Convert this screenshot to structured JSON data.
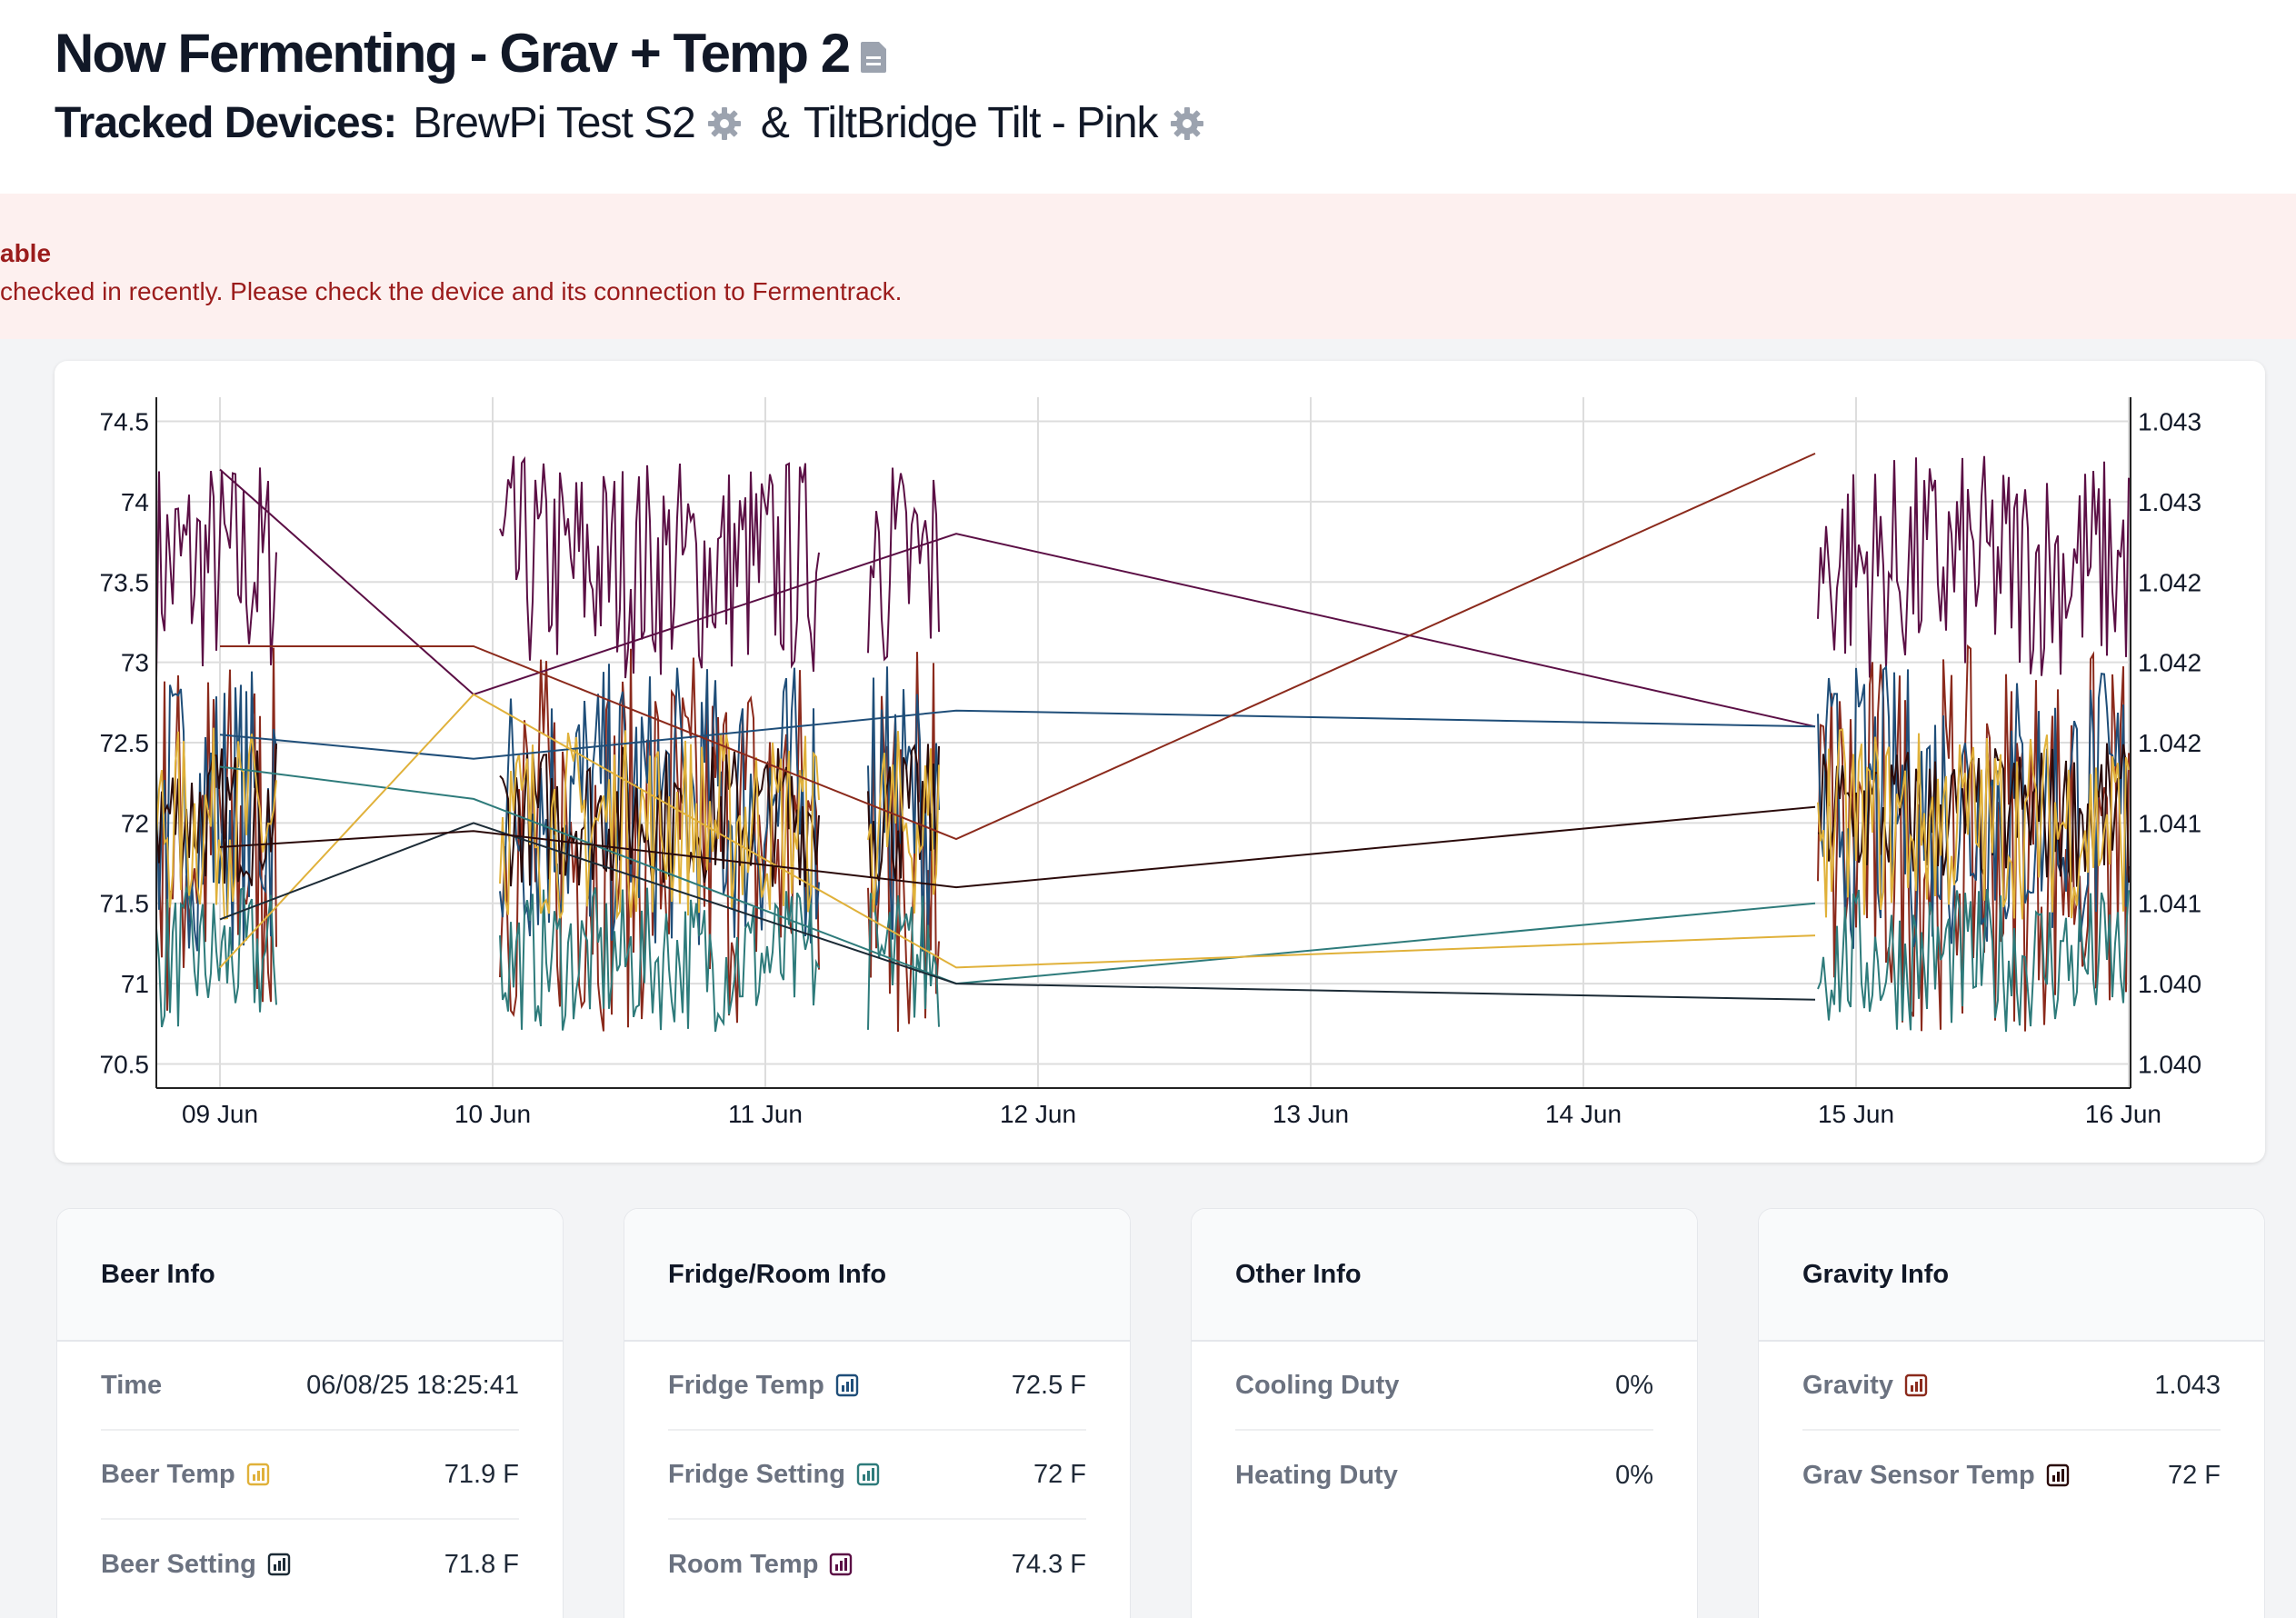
{
  "header": {
    "title": "Now Fermenting - Grav + Temp 2",
    "tracked_label": "Tracked Devices:",
    "device1": "BrewPi Test S2",
    "amp": "&",
    "device2": "TiltBridge Tilt - Pink"
  },
  "alert": {
    "title": "able",
    "message": "checked in recently. Please check the device and its connection to Fermentrack."
  },
  "chart_data": {
    "type": "line",
    "x_ticks": [
      "09 Jun",
      "10 Jun",
      "11 Jun",
      "12 Jun",
      "13 Jun",
      "14 Jun",
      "15 Jun",
      "16 Jun"
    ],
    "y_left_ticks": [
      "74.5",
      "74",
      "73.5",
      "73",
      "72.5",
      "72",
      "71.5",
      "71",
      "70.5"
    ],
    "y_right_ticks": [
      "1.043",
      "1.043",
      "1.042",
      "1.042",
      "1.042",
      "1.041",
      "1.041",
      "1.040",
      "1.040"
    ],
    "ylim_left": [
      70.35,
      74.65
    ],
    "grid": true,
    "series": [
      {
        "color": "#5b0f45",
        "points": [
          [
            9.0,
            74.2
          ],
          [
            9.93,
            72.8
          ],
          [
            11.7,
            73.8
          ],
          [
            14.85,
            72.6
          ]
        ]
      },
      {
        "color": "#1f4e79",
        "points": [
          [
            9.0,
            72.55
          ],
          [
            9.93,
            72.4
          ],
          [
            11.7,
            72.7
          ],
          [
            14.85,
            72.6
          ]
        ]
      },
      {
        "color": "#2e7b7b",
        "points": [
          [
            9.0,
            72.35
          ],
          [
            9.93,
            72.15
          ],
          [
            11.7,
            71.0
          ],
          [
            14.85,
            71.5
          ]
        ]
      },
      {
        "color": "#e0b13a",
        "points": [
          [
            9.0,
            71.1
          ],
          [
            9.93,
            72.8
          ],
          [
            11.7,
            71.1
          ],
          [
            14.85,
            71.3
          ]
        ]
      },
      {
        "color": "#8b2a1c",
        "points": [
          [
            9.0,
            73.1
          ],
          [
            9.93,
            73.1
          ],
          [
            11.7,
            71.9
          ],
          [
            14.85,
            74.3
          ]
        ]
      },
      {
        "color": "#1c2b36",
        "points": [
          [
            9.0,
            71.4
          ],
          [
            9.93,
            72.0
          ],
          [
            11.7,
            71.0
          ],
          [
            14.85,
            70.9
          ]
        ]
      },
      {
        "color": "#2a0a0a",
        "points": [
          [
            9.0,
            71.85
          ],
          [
            9.93,
            71.95
          ],
          [
            11.7,
            71.6
          ],
          [
            14.85,
            72.1
          ]
        ]
      }
    ]
  },
  "cards": [
    {
      "title": "Beer Info",
      "rows": [
        {
          "label": "Time",
          "value": "06/08/25 18:25:41",
          "icon": ""
        },
        {
          "label": "Beer Temp",
          "value": "71.9 F",
          "icon": "#e0b13a"
        },
        {
          "label": "Beer Setting",
          "value": "71.8 F",
          "icon": "#1c2b36"
        }
      ]
    },
    {
      "title": "Fridge/Room Info",
      "rows": [
        {
          "label": "Fridge Temp",
          "value": "72.5 F",
          "icon": "#1f4e79"
        },
        {
          "label": "Fridge Setting",
          "value": "72 F",
          "icon": "#2e7b7b"
        },
        {
          "label": "Room Temp",
          "value": "74.3 F",
          "icon": "#5b0f45"
        }
      ]
    },
    {
      "title": "Other Info",
      "rows": [
        {
          "label": "Cooling Duty",
          "value": "0%",
          "icon": ""
        },
        {
          "label": "Heating Duty",
          "value": "0%",
          "icon": ""
        }
      ]
    },
    {
      "title": "Gravity Info",
      "rows": [
        {
          "label": "Gravity",
          "value": "1.043",
          "icon": "#8b2a1c"
        },
        {
          "label": "Grav Sensor Temp",
          "value": "72 F",
          "icon": "#2a0a0a"
        }
      ]
    }
  ]
}
